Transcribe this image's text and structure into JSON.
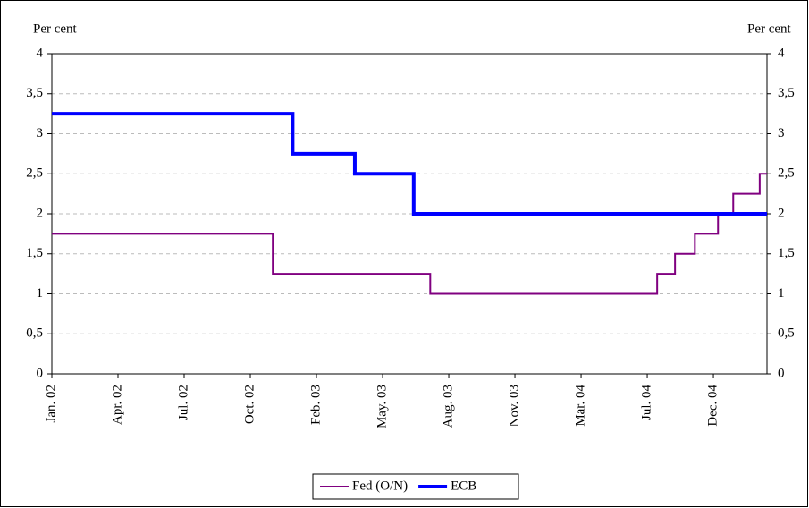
{
  "chart_data": {
    "type": "line",
    "y_label": "Per cent",
    "y2_label": "Per cent",
    "xlim": [
      0,
      10.81
    ],
    "xticks": [
      {
        "value": 0,
        "label": "Jan. 02"
      },
      {
        "value": 1,
        "label": "Apr. 02"
      },
      {
        "value": 2,
        "label": "Jul. 02"
      },
      {
        "value": 3,
        "label": "Oct. 02"
      },
      {
        "value": 4,
        "label": "Feb. 03"
      },
      {
        "value": 5,
        "label": "May. 03"
      },
      {
        "value": 6,
        "label": "Aug. 03"
      },
      {
        "value": 7,
        "label": "Nov. 03"
      },
      {
        "value": 8,
        "label": "Mar. 04"
      },
      {
        "value": 9,
        "label": "Jul. 04"
      },
      {
        "value": 10,
        "label": "Dec. 04"
      }
    ],
    "ylim": [
      0,
      4
    ],
    "yticks": [
      0,
      {
        "value": 0.5,
        "label": "0,5"
      },
      1,
      {
        "value": 1.5,
        "label": "1,5"
      },
      2,
      {
        "value": 2.5,
        "label": "2,5"
      },
      3,
      {
        "value": 3.5,
        "label": "3,5"
      },
      4
    ],
    "y2lim": [
      0,
      4
    ],
    "y2ticks": [
      0,
      {
        "value": 0.5,
        "label": "0,5"
      },
      1,
      {
        "value": 1.5,
        "label": "1,5"
      },
      2,
      {
        "value": 2.5,
        "label": "2,5"
      },
      3,
      {
        "value": 3.5,
        "label": "3,5"
      },
      4
    ],
    "grid": true,
    "legend": "bottom",
    "series": [
      {
        "name": "Fed (O/N)",
        "color": "#800080",
        "width": 2,
        "x": [
          0,
          3.34,
          3.34,
          5.72,
          5.72,
          9.15,
          9.15,
          9.42,
          9.42,
          9.72,
          9.72,
          10.07,
          10.07,
          10.3,
          10.3,
          10.7,
          10.7,
          10.81
        ],
        "values": [
          1.75,
          1.75,
          1.25,
          1.25,
          1,
          1,
          1.25,
          1.25,
          1.5,
          1.5,
          1.75,
          1.75,
          2,
          2,
          2.25,
          2.25,
          2.5,
          2.5
        ]
      },
      {
        "name": "ECB",
        "color": "#0000ff",
        "width": 4,
        "x": [
          0,
          3.64,
          3.64,
          4.58,
          4.58,
          5.47,
          5.47,
          10.81
        ],
        "values": [
          3.25,
          3.25,
          2.75,
          2.75,
          2.5,
          2.5,
          2,
          2
        ]
      }
    ]
  }
}
